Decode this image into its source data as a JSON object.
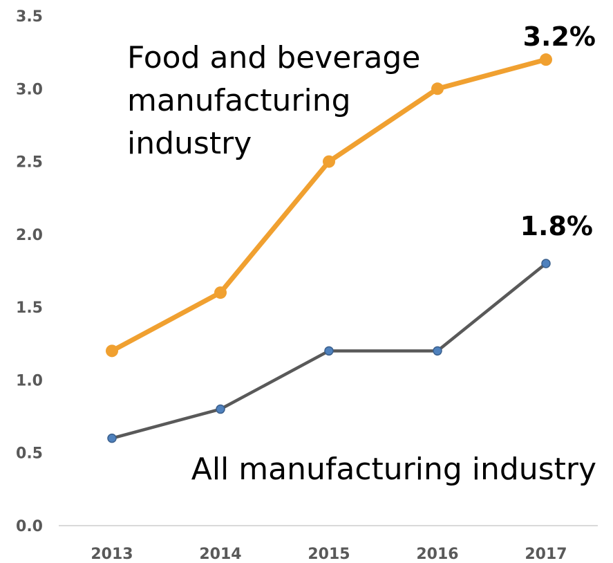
{
  "chart_data": {
    "type": "line",
    "title": "",
    "xlabel": "",
    "ylabel": "",
    "categories": [
      "2013",
      "2014",
      "2015",
      "2016",
      "2017"
    ],
    "ylim": [
      0,
      3.5
    ],
    "yticks": [
      "0.0",
      "0.5",
      "1.0",
      "1.5",
      "2.0",
      "2.5",
      "3.0",
      "3.5"
    ],
    "grid": false,
    "legend": "none (series labelled directly on the chart)",
    "series": [
      {
        "name_lines": [
          "Food and beverage",
          "manufacturing",
          "industry"
        ],
        "values": [
          1.2,
          1.6,
          2.5,
          3.0,
          3.2
        ],
        "end_label": "3.2%",
        "line_color": "#F0A030",
        "marker_color": "#F0A030"
      },
      {
        "name_lines": [
          "All manufacturing industry"
        ],
        "values": [
          0.6,
          0.8,
          1.2,
          1.2,
          1.8
        ],
        "end_label": "1.8%",
        "line_color": "#595959",
        "marker_color": "#4F81BD"
      }
    ],
    "axis_color": "#D9D9D9"
  }
}
